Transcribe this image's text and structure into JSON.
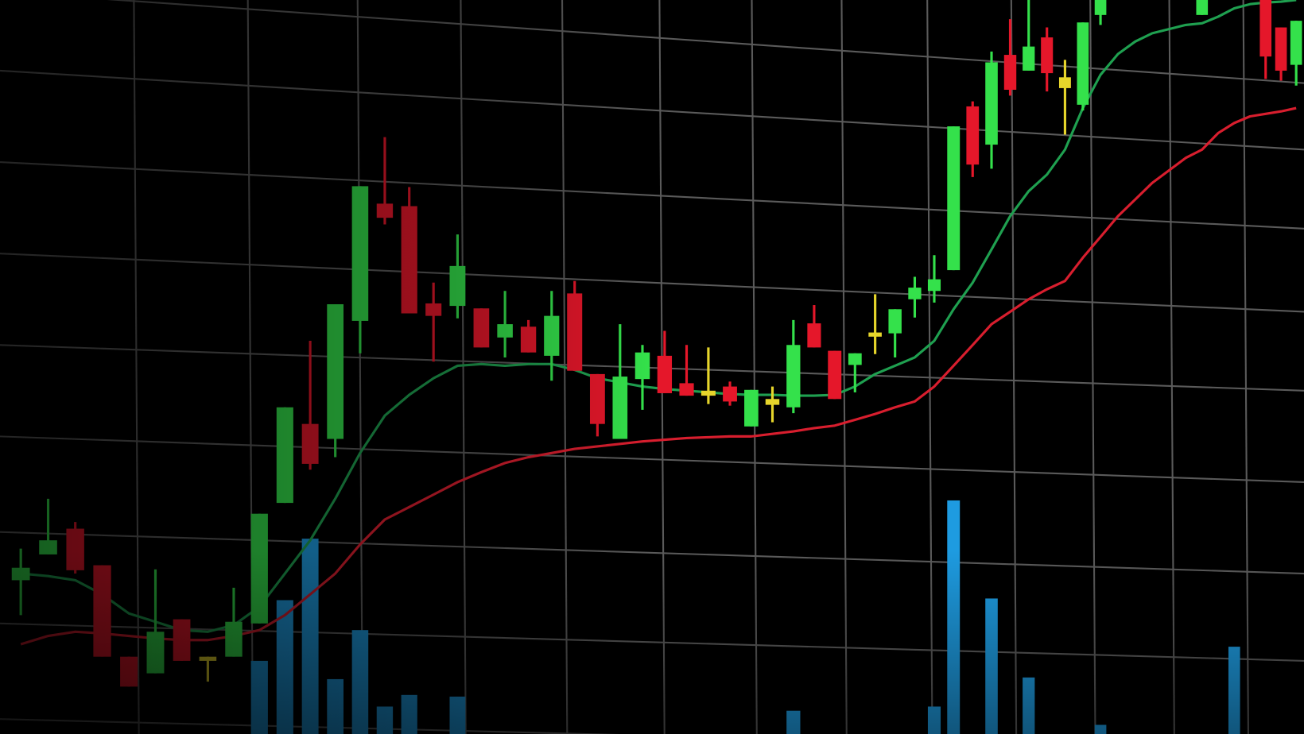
{
  "chart_data": {
    "type": "candlestick",
    "ylim": [
      0,
      883
    ],
    "grid": true,
    "open": [
      185,
      216,
      247,
      203,
      93,
      73,
      138,
      93,
      93,
      133,
      278,
      373,
      355,
      497,
      638,
      635,
      518,
      515,
      512,
      477,
      490,
      455,
      530,
      433,
      355,
      427,
      455,
      422,
      413,
      418,
      370,
      396,
      393,
      494,
      461,
      444,
      478,
      482,
      523,
      533,
      558,
      755,
      709,
      817,
      798,
      838,
      790,
      757,
      865,
      null,
      null,
      null,
      null,
      null,
      865,
      null,
      null,
      null,
      883,
      850,
      805
    ],
    "high": [
      223,
      283,
      255,
      203,
      93,
      198,
      138,
      93,
      176,
      265,
      393,
      473,
      517,
      659,
      718,
      658,
      543,
      601,
      512,
      533,
      498,
      533,
      545,
      433,
      493,
      468,
      485,
      468,
      465,
      424,
      414,
      418,
      498,
      516,
      461,
      458,
      529,
      511,
      550,
      576,
      731,
      761,
      821,
      860,
      883,
      850,
      811,
      856,
      883,
      null,
      null,
      null,
      null,
      null,
      883,
      null,
      null,
      null,
      883,
      850,
      858
    ],
    "low": [
      143,
      216,
      193,
      93,
      57,
      73,
      88,
      63,
      93,
      133,
      278,
      318,
      333,
      458,
      613,
      506,
      448,
      500,
      465,
      453,
      459,
      425,
      437,
      358,
      355,
      390,
      410,
      407,
      397,
      395,
      370,
      375,
      386,
      465,
      403,
      411,
      457,
      453,
      501,
      519,
      558,
      670,
      680,
      768,
      798,
      773,
      721,
      750,
      853,
      null,
      null,
      null,
      null,
      null,
      865,
      null,
      null,
      null,
      788,
      786,
      780
    ],
    "close": [
      200,
      233,
      197,
      93,
      57,
      123,
      88,
      88,
      135,
      265,
      393,
      325,
      517,
      659,
      621,
      506,
      503,
      563,
      465,
      493,
      459,
      503,
      437,
      373,
      430,
      459,
      410,
      407,
      407,
      400,
      414,
      403,
      468,
      465,
      403,
      458,
      483,
      511,
      537,
      547,
      731,
      685,
      808,
      775,
      827,
      795,
      777,
      856,
      883,
      null,
      null,
      null,
      null,
      null,
      883,
      null,
      null,
      null,
      815,
      798,
      858
    ],
    "colors": [
      "#34e14b",
      "#34e14b",
      "#e5172a",
      "#e5172a",
      "#e5172a",
      "#34e14b",
      "#e5172a",
      "#e6d52b",
      "#34e14b",
      "#34e14b",
      "#34e14b",
      "#e5172a",
      "#34e14b",
      "#34e14b",
      "#e5172a",
      "#e5172a",
      "#e5172a",
      "#34e14b",
      "#e5172a",
      "#34e14b",
      "#e5172a",
      "#34e14b",
      "#e5172a",
      "#e5172a",
      "#34e14b",
      "#34e14b",
      "#e5172a",
      "#e5172a",
      "#e6d52b",
      "#e5172a",
      "#34e14b",
      "#e6d52b",
      "#34e14b",
      "#e5172a",
      "#e5172a",
      "#34e14b",
      "#e6d52b",
      "#34e14b",
      "#34e14b",
      "#34e14b",
      "#34e14b",
      "#e5172a",
      "#34e14b",
      "#e5172a",
      "#34e14b",
      "#e5172a",
      "#e6d52b",
      "#34e14b",
      "#34e14b",
      null,
      null,
      null,
      null,
      null,
      "#34e14b",
      null,
      null,
      null,
      "#e5172a",
      "#e5172a",
      "#34e14b"
    ],
    "volume": {
      "color": "#1e9be0",
      "values": [
        null,
        null,
        null,
        null,
        null,
        null,
        null,
        null,
        null,
        88,
        161,
        235,
        66,
        125,
        33,
        47,
        null,
        45,
        null,
        null,
        null,
        null,
        null,
        null,
        null,
        null,
        null,
        null,
        null,
        null,
        null,
        null,
        28,
        null,
        null,
        null,
        null,
        null,
        null,
        33,
        281,
        null,
        163,
        null,
        68,
        null,
        null,
        null,
        11,
        null,
        null,
        null,
        null,
        null,
        null,
        null,
        105,
        null,
        null,
        null,
        null
      ]
    },
    "series": [
      {
        "color": "#1fa050",
        "values": [
          193,
          190,
          185,
          168,
          145,
          135,
          125,
          123,
          131,
          153,
          193,
          233,
          283,
          338,
          383,
          408,
          428,
          443,
          445,
          443,
          445,
          445,
          438,
          428,
          423,
          418,
          415,
          413,
          411,
          409,
          408,
          408,
          407,
          407,
          408,
          418,
          433,
          443,
          453,
          473,
          511,
          543,
          583,
          623,
          653,
          673,
          703,
          753,
          793,
          818,
          833,
          843,
          848,
          853,
          855,
          863,
          873,
          878,
          880,
          881,
          883
        ]
      },
      {
        "color": "#d81e2e",
        "values": [
          108,
          118,
          123,
          121,
          118,
          115,
          113,
          113,
          118,
          125,
          143,
          168,
          193,
          228,
          258,
          273,
          288,
          303,
          315,
          326,
          333,
          338,
          343,
          346,
          349,
          352,
          354,
          356,
          357,
          358,
          358,
          361,
          364,
          368,
          371,
          378,
          385,
          393,
          400,
          418,
          443,
          468,
          493,
          508,
          523,
          535,
          545,
          573,
          598,
          623,
          643,
          663,
          678,
          693,
          703,
          723,
          735,
          743,
          746,
          749,
          753
        ]
      }
    ]
  }
}
